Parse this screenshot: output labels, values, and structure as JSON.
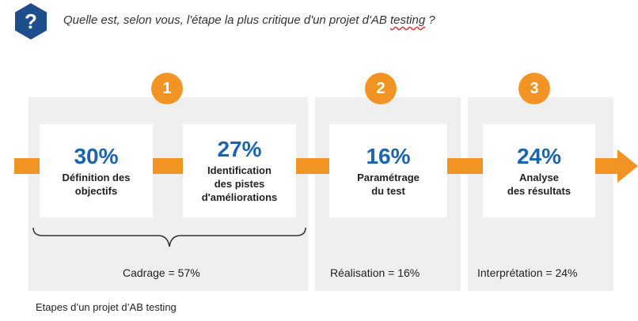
{
  "question": {
    "icon": "question-mark-icon",
    "badge_symbol": "?",
    "text_main": "Quelle est, selon vous, l'étape la plus critique d'un projet d'AB ",
    "text_underlined": "testing",
    "text_end": " ?"
  },
  "colors": {
    "accent": "#f29423",
    "percent": "#1a64b0",
    "badge": "#1f4e8c",
    "panel": "#efefef"
  },
  "phases": [
    {
      "number": "1",
      "summary": "Cadrage = 57%"
    },
    {
      "number": "2",
      "summary": "Réalisation = 16%"
    },
    {
      "number": "3",
      "summary": "Interprétation = 24%"
    }
  ],
  "steps": [
    {
      "percent": "30%",
      "label": "Définition des\nobjectifs",
      "value": 30
    },
    {
      "percent": "27%",
      "label": "Identification\ndes pistes\nd'améliorations",
      "value": 27
    },
    {
      "percent": "16%",
      "label": "Paramétrage\ndu test",
      "value": 16
    },
    {
      "percent": "24%",
      "label": "Analyse\ndes résultats",
      "value": 24
    }
  ],
  "caption": "Etapes d’un projet d’AB testing"
}
